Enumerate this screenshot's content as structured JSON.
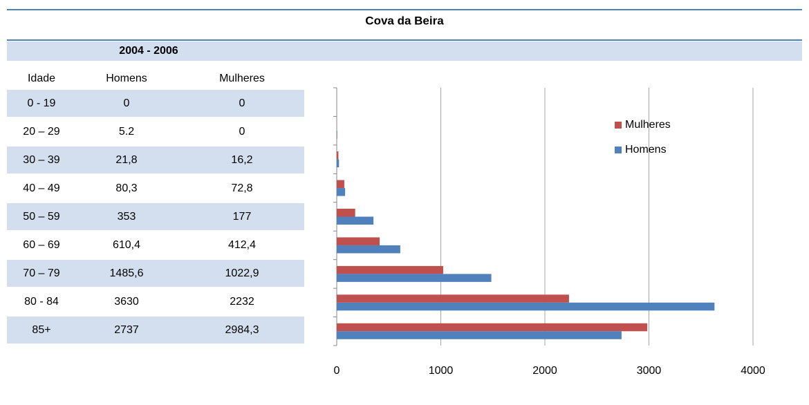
{
  "title": "Cova da Beira",
  "table": {
    "period": "2004 - 2006",
    "columns": [
      "Idade",
      "Homens",
      "Mulheres"
    ],
    "rows": [
      [
        "0 - 19",
        "0",
        "0"
      ],
      [
        "20 – 29",
        "5.2",
        "0"
      ],
      [
        "30 – 39",
        "21,8",
        "16,2"
      ],
      [
        "40 – 49",
        "80,3",
        "72,8"
      ],
      [
        "50 – 59",
        "353",
        "177"
      ],
      [
        "60 – 69",
        "610,4",
        "412,4"
      ],
      [
        "70 – 79",
        "1485,6",
        "1022,9"
      ],
      [
        "80 - 84",
        "3630",
        "2232"
      ],
      [
        "85+",
        "2737",
        "2984,3"
      ]
    ]
  },
  "chart_data": {
    "type": "bar",
    "orientation": "horizontal",
    "series": [
      {
        "name": "Mulheres",
        "color": "#c0504d",
        "values": [
          0,
          0,
          16.2,
          72.8,
          177,
          412.4,
          1022.9,
          2232,
          2984.3
        ]
      },
      {
        "name": "Homens",
        "color": "#4f81bd",
        "values": [
          0,
          5.2,
          21.8,
          80.3,
          353,
          610.4,
          1485.6,
          3630,
          2737
        ]
      }
    ],
    "xlim": [
      0,
      4000
    ],
    "xticks": [
      0,
      1000,
      2000,
      3000,
      4000
    ],
    "grid": true,
    "legend": "right"
  }
}
